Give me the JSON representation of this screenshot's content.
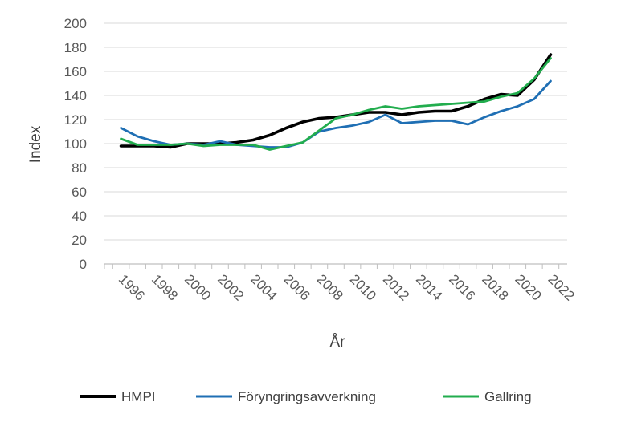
{
  "chart_data": {
    "type": "line",
    "title": "",
    "xlabel": "År",
    "ylabel": "Index",
    "ylim": [
      0,
      200
    ],
    "y_ticks": [
      "0",
      "20",
      "40",
      "60",
      "80",
      "100",
      "120",
      "140",
      "160",
      "180",
      "200"
    ],
    "x_tick_labels": [
      "1996",
      "1998",
      "2000",
      "2002",
      "2004",
      "2006",
      "2008",
      "2010",
      "2012",
      "2014",
      "2016",
      "2018",
      "2020",
      "2022"
    ],
    "x": [
      1996,
      1997,
      1998,
      1999,
      2000,
      2001,
      2002,
      2003,
      2004,
      2005,
      2006,
      2007,
      2008,
      2009,
      2010,
      2011,
      2012,
      2013,
      2014,
      2015,
      2016,
      2017,
      2018,
      2019,
      2020,
      2021,
      2022
    ],
    "grid": "horizontal",
    "legend_position": "bottom",
    "series": [
      {
        "name": "HMPI",
        "color": "#000000",
        "values": [
          98,
          98,
          98,
          97,
          100,
          100,
          100,
          101,
          103,
          107,
          113,
          118,
          121,
          122,
          124,
          126,
          126,
          124,
          126,
          127,
          127,
          131,
          137,
          141,
          140,
          153,
          174
        ]
      },
      {
        "name": "Föryngringsavverkning",
        "color": "#1f6fb4",
        "values": [
          113,
          106,
          102,
          99,
          100,
          99,
          102,
          99,
          98,
          97,
          97,
          101,
          110,
          113,
          115,
          118,
          124,
          117,
          118,
          119,
          119,
          116,
          122,
          127,
          131,
          137,
          152
        ]
      },
      {
        "name": "Gallring",
        "color": "#22ad4e",
        "values": [
          104,
          99,
          99,
          99,
          100,
          98,
          99,
          99,
          99,
          95,
          98,
          101,
          111,
          121,
          124,
          128,
          131,
          129,
          131,
          132,
          133,
          134,
          135,
          139,
          142,
          154,
          171
        ]
      }
    ]
  }
}
